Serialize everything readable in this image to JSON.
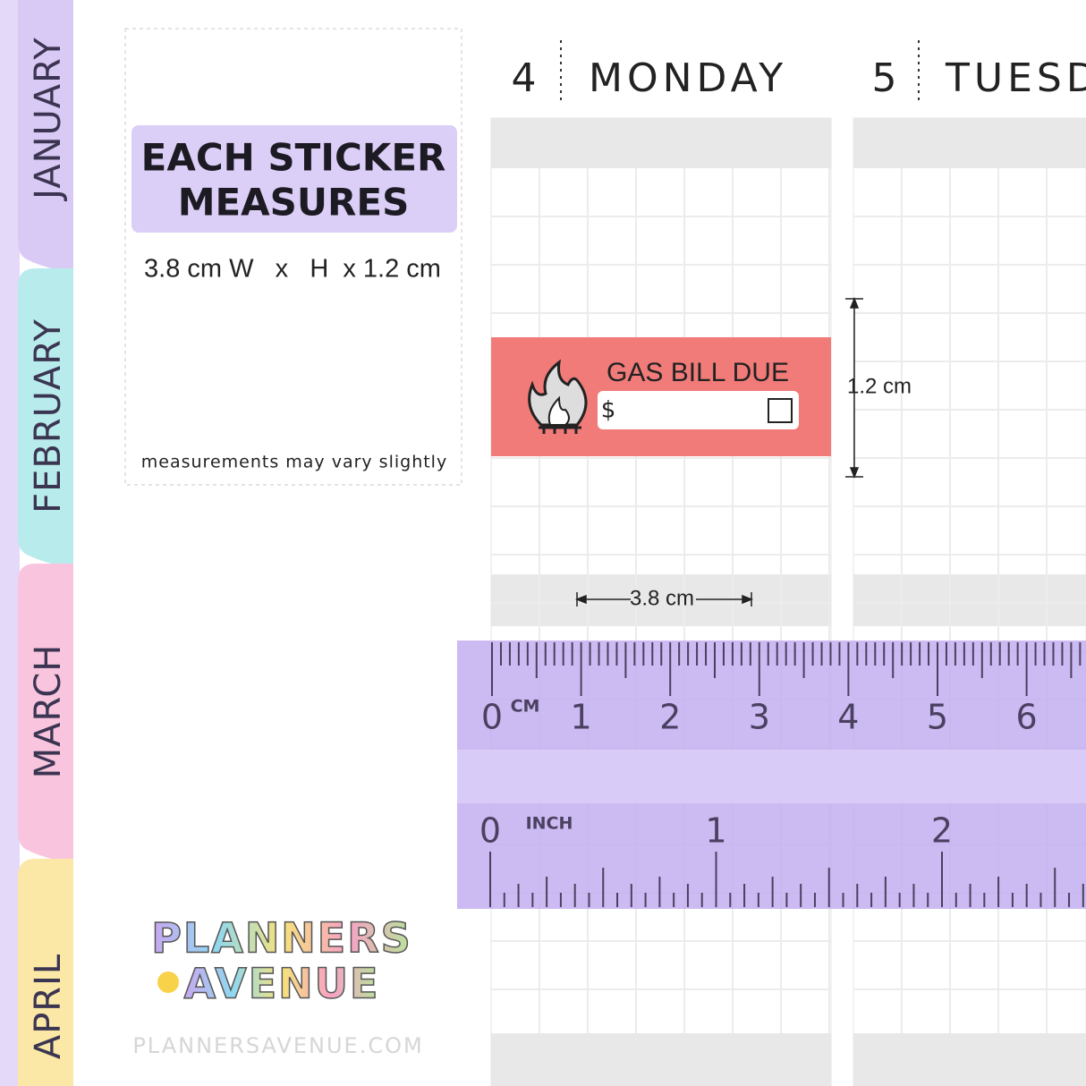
{
  "tabs": [
    "JANUARY",
    "FEBRUARY",
    "MARCH",
    "APRIL"
  ],
  "info": {
    "title_lines": [
      "EACH STICKER",
      "MEASURES"
    ],
    "dimensions": "3.8 cm W   x   H  x 1.2 cm",
    "note": "measurements may vary slightly"
  },
  "days": [
    {
      "number": "4",
      "name": "MONDAY"
    },
    {
      "number": "5",
      "name": "TUESDAY"
    }
  ],
  "sticker": {
    "title": "GAS BILL DUE",
    "currency": "$"
  },
  "dimension_labels": {
    "height": "1.2 cm",
    "width": "3.8 cm"
  },
  "ruler": {
    "cm_unit": "CM",
    "cm_labels": [
      0,
      1,
      2,
      3,
      4,
      5,
      6
    ],
    "inch_unit": "INCH",
    "inch_labels": [
      0,
      1,
      2
    ]
  },
  "logo": {
    "lines": [
      "PLANNERS",
      "AVENUE"
    ],
    "url": "PLANNERSAVENUE.COM"
  }
}
